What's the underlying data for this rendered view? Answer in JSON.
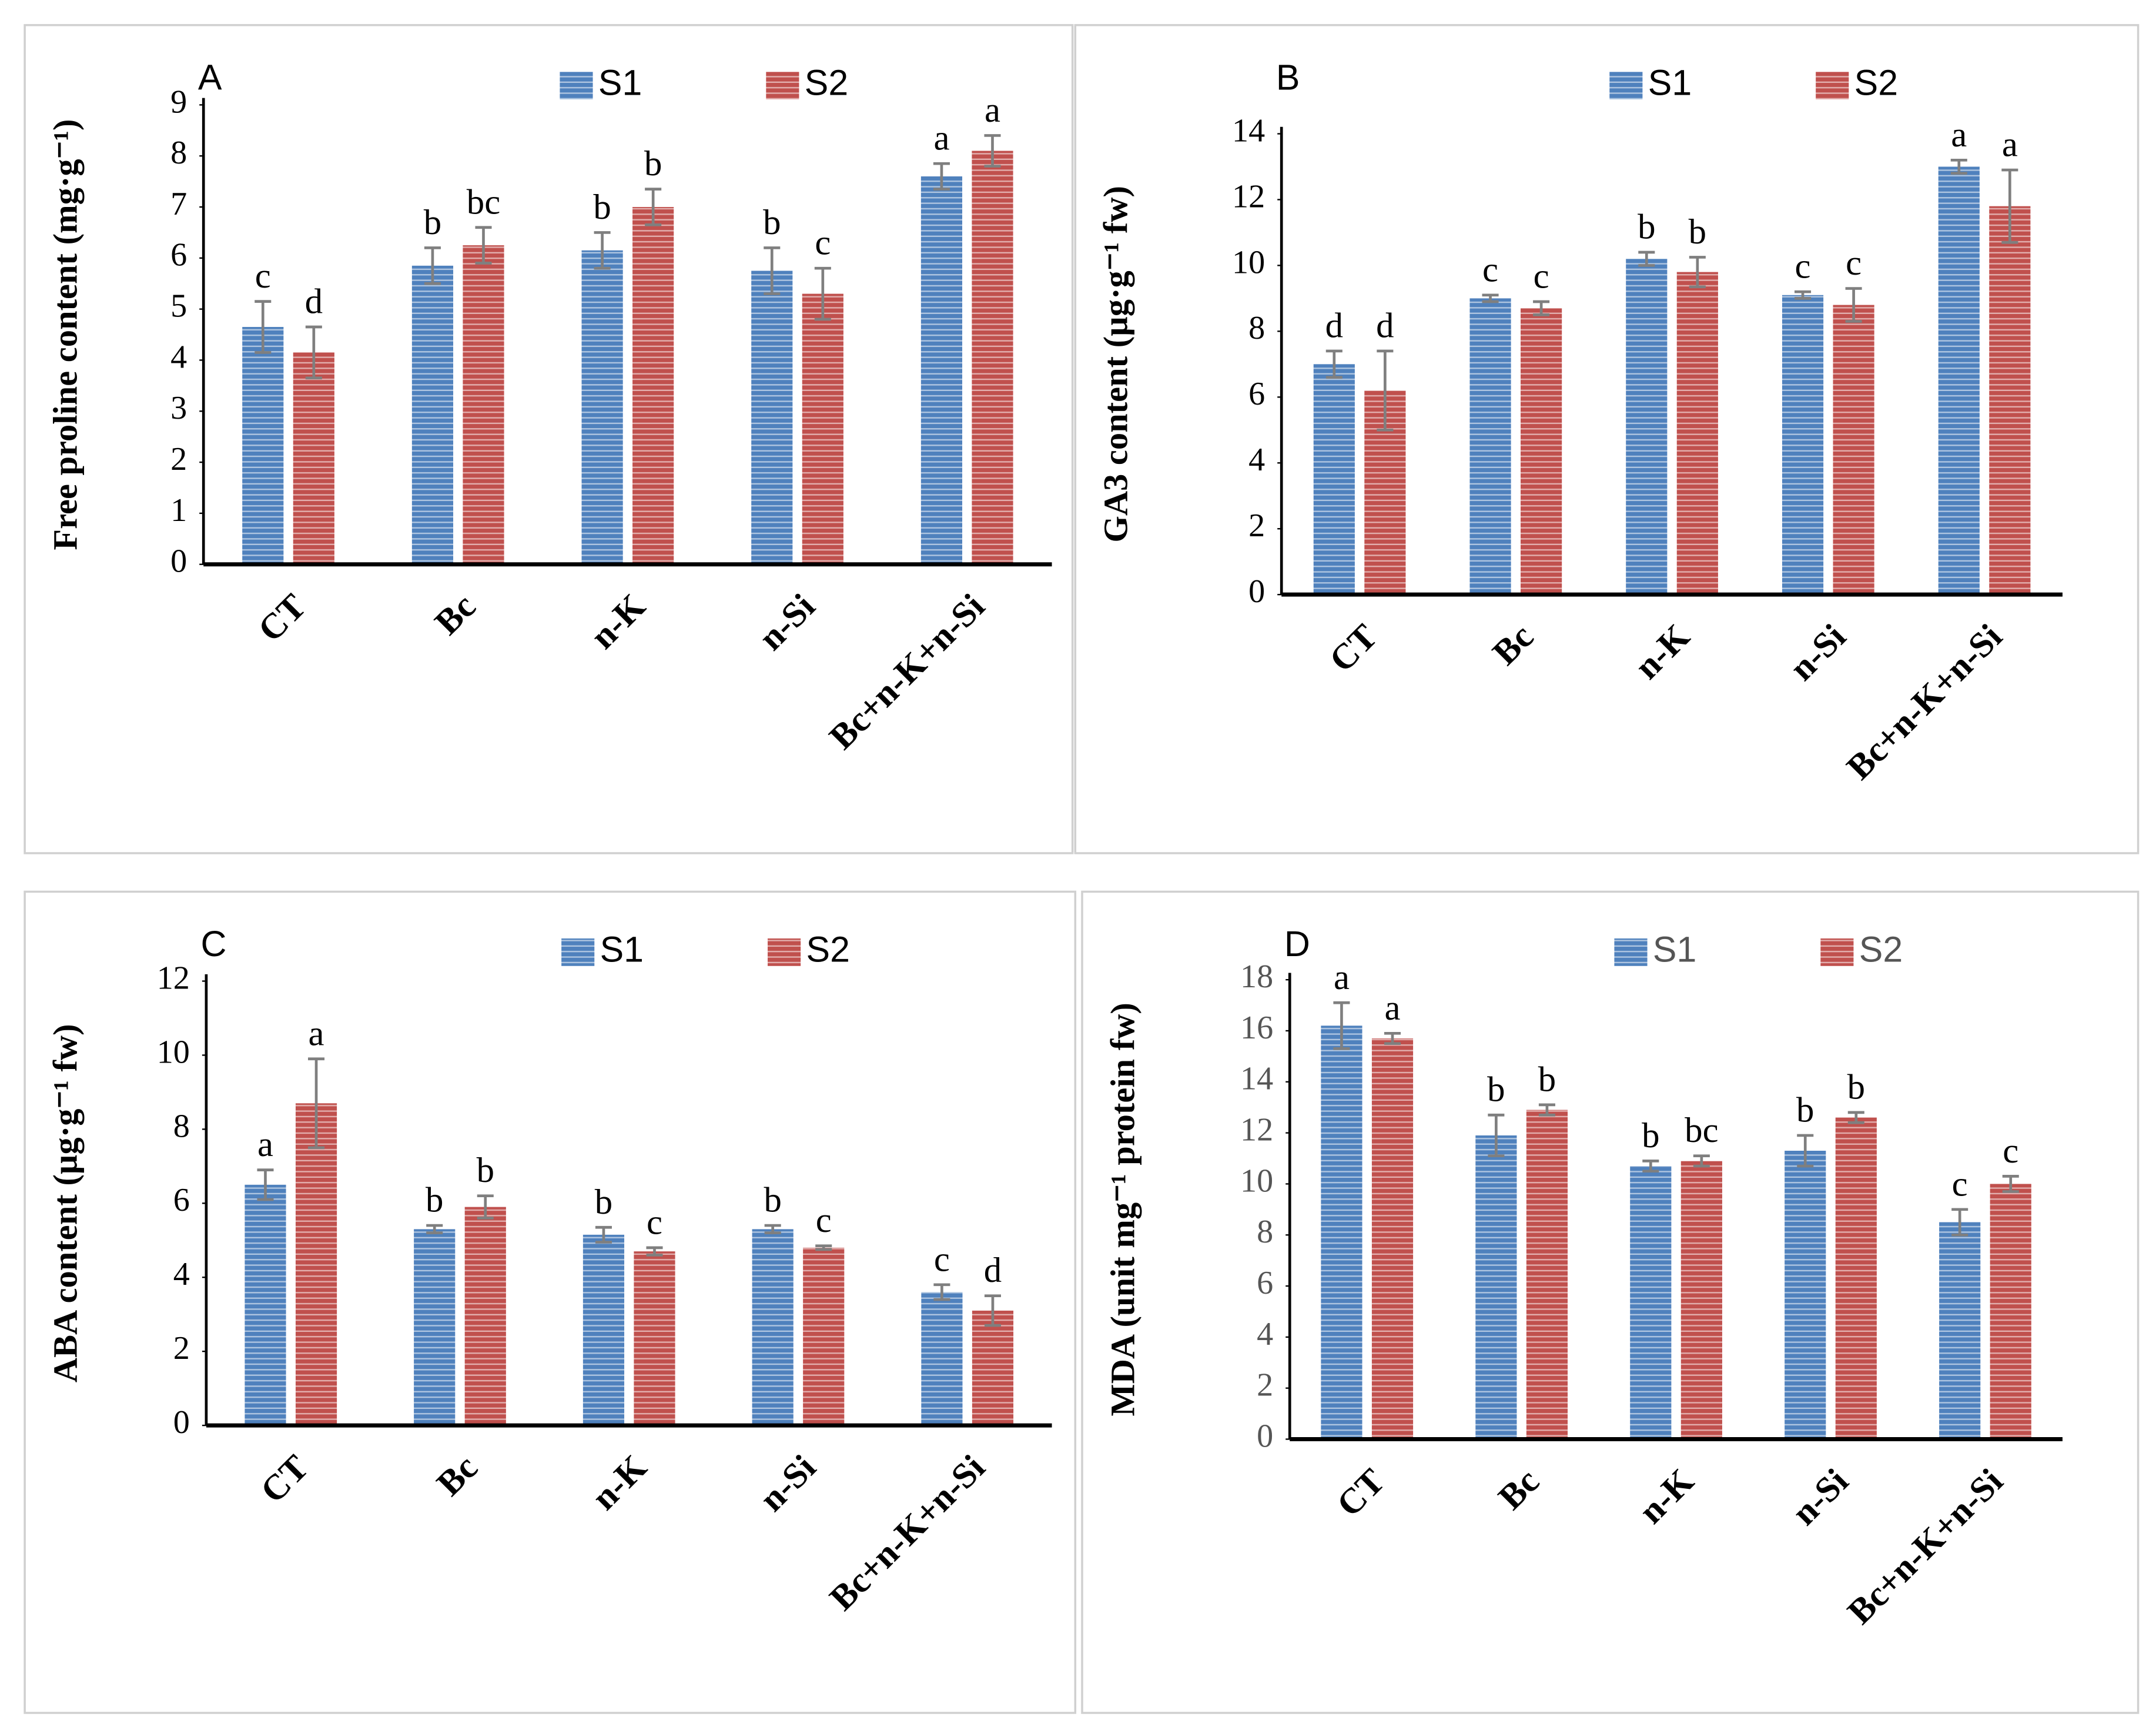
{
  "chart_data": [
    {
      "type": "bar",
      "panel": "A",
      "y_label": "Free proline content (mg·g⁻¹)",
      "categories": [
        "CT",
        "Bc",
        "n-K",
        "n-Si",
        "Bc+n-K+n-Si"
      ],
      "series": [
        {
          "name": "S1",
          "color": "#4f81bd",
          "values": [
            4.65,
            5.85,
            6.15,
            5.75,
            7.6
          ],
          "errors": [
            0.5,
            0.35,
            0.35,
            0.45,
            0.25
          ],
          "letters": [
            "c",
            "b",
            "b",
            "b",
            "a"
          ]
        },
        {
          "name": "S2",
          "color": "#c0504d",
          "values": [
            4.15,
            6.25,
            7.0,
            5.3,
            8.1
          ],
          "errors": [
            0.5,
            0.35,
            0.35,
            0.5,
            0.3
          ],
          "letters": [
            "d",
            "bc",
            "b",
            "c",
            "a"
          ]
        }
      ],
      "ylim": [
        0,
        9
      ],
      "yticks": [
        0,
        1,
        2,
        3,
        4,
        5,
        6,
        7,
        8,
        9
      ]
    },
    {
      "type": "bar",
      "panel": "B",
      "y_label": "GA3 content (µg·g⁻¹ fw)",
      "categories": [
        "CT",
        "Bc",
        "n-K",
        "n-Si",
        "Bc+n-K+n-Si"
      ],
      "series": [
        {
          "name": "S1",
          "color": "#4f81bd",
          "values": [
            7.0,
            9.0,
            10.2,
            9.1,
            13.0
          ],
          "errors": [
            0.4,
            0.1,
            0.2,
            0.1,
            0.2
          ],
          "letters": [
            "d",
            "c",
            "b",
            "c",
            "a"
          ]
        },
        {
          "name": "S2",
          "color": "#c0504d",
          "values": [
            6.2,
            8.7,
            9.8,
            8.8,
            11.8
          ],
          "errors": [
            1.2,
            0.2,
            0.45,
            0.5,
            1.1
          ],
          "letters": [
            "d",
            "c",
            "b",
            "c",
            "a"
          ]
        }
      ],
      "ylim": [
        0,
        14
      ],
      "yticks": [
        0,
        2,
        4,
        6,
        8,
        10,
        12,
        14
      ]
    },
    {
      "type": "bar",
      "panel": "C",
      "y_label": "ABA content (µg·g⁻¹ fw)",
      "categories": [
        "CT",
        "Bc",
        "n-K",
        "n-Si",
        "Bc+n-K+n-Si"
      ],
      "series": [
        {
          "name": "S1",
          "color": "#4f81bd",
          "values": [
            6.5,
            5.3,
            5.15,
            5.3,
            3.6
          ],
          "errors": [
            0.4,
            0.1,
            0.2,
            0.1,
            0.2
          ],
          "letters": [
            "a",
            "b",
            "b",
            "b",
            "c"
          ]
        },
        {
          "name": "S2",
          "color": "#c0504d",
          "values": [
            8.7,
            5.9,
            4.7,
            4.8,
            3.1
          ],
          "errors": [
            1.2,
            0.3,
            0.1,
            0.05,
            0.4
          ],
          "letters": [
            "a",
            "b",
            "c",
            "c",
            "d"
          ]
        }
      ],
      "ylim": [
        0,
        12
      ],
      "yticks": [
        0,
        2,
        4,
        6,
        8,
        10,
        12
      ]
    },
    {
      "type": "bar",
      "panel": "D",
      "y_label": "MDA (unit mg⁻¹ protein fw)",
      "categories": [
        "CT",
        "Bc",
        "n-K",
        "n-Si",
        "Bc+n-K+n-Si"
      ],
      "series": [
        {
          "name": "S1",
          "color": "#4f81bd",
          "values": [
            16.2,
            11.9,
            10.7,
            11.3,
            8.5
          ],
          "errors": [
            0.9,
            0.8,
            0.2,
            0.6,
            0.5
          ],
          "letters": [
            "a",
            "b",
            "b",
            "b",
            "c"
          ]
        },
        {
          "name": "S2",
          "color": "#c0504d",
          "values": [
            15.7,
            12.9,
            10.9,
            12.6,
            10.0
          ],
          "errors": [
            0.2,
            0.2,
            0.2,
            0.2,
            0.3
          ],
          "letters": [
            "a",
            "b",
            "bc",
            "b",
            "c"
          ]
        }
      ],
      "ylim": [
        0,
        18
      ],
      "yticks": [
        0,
        2,
        4,
        6,
        8,
        10,
        12,
        14,
        16,
        18
      ]
    }
  ]
}
